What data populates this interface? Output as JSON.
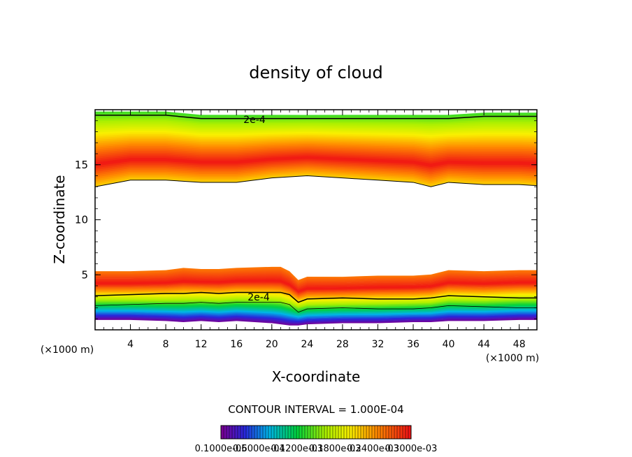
{
  "chart_data": {
    "type": "contour",
    "title": "density of cloud",
    "xlabel": "X-coordinate",
    "ylabel": "Z-coordinate",
    "x_unit": "(×1000 m)",
    "z_unit": "(×1000 m)",
    "xlim": [
      0,
      50
    ],
    "ylim": [
      0,
      20
    ],
    "x_ticks": [
      "4",
      "8",
      "12",
      "16",
      "20",
      "24",
      "28",
      "32",
      "36",
      "40",
      "44",
      "48"
    ],
    "y_ticks": [
      "5",
      "10",
      "15"
    ],
    "contour_labels": [
      "2e-4",
      "2e-4"
    ],
    "contour_interval": "CONTOUR INTERVAL = 1.000E-04",
    "colorbar_labels": [
      "0.1000e-05",
      "0.6000e-04",
      "0.1200e-03",
      "0.1800e-03",
      "0.2400e-03",
      "0.3000e-03"
    ],
    "upper_layer": {
      "x": [
        0,
        4,
        8,
        12,
        16,
        20,
        24,
        28,
        32,
        36,
        38,
        40,
        44,
        48,
        50
      ],
      "bottom": [
        13,
        13.6,
        13.6,
        13.4,
        13.4,
        13.8,
        14,
        13.8,
        13.6,
        13.4,
        13.0,
        13.4,
        13.2,
        13.2,
        13.1
      ],
      "top": [
        19.8,
        19.8,
        19.8,
        19.5,
        19.5,
        19.5,
        19.5,
        19.5,
        19.5,
        19.5,
        19.5,
        19.5,
        19.7,
        19.7,
        19.7
      ]
    },
    "lower_layer": {
      "x": [
        0,
        4,
        8,
        10,
        12,
        14,
        16,
        20,
        21,
        22,
        23,
        24,
        28,
        32,
        36,
        38,
        40,
        44,
        48,
        50
      ],
      "top": [
        5.3,
        5.3,
        5.4,
        5.6,
        5.5,
        5.5,
        5.6,
        5.7,
        5.7,
        5.3,
        4.5,
        4.8,
        4.8,
        4.9,
        4.9,
        5.0,
        5.4,
        5.3,
        5.4,
        5.4
      ],
      "bottom": [
        0.9,
        0.9,
        0.8,
        0.7,
        0.8,
        0.7,
        0.8,
        0.6,
        0.5,
        0.4,
        0.4,
        0.5,
        0.6,
        0.6,
        0.7,
        0.7,
        0.8,
        0.8,
        0.9,
        0.9
      ],
      "contour_2e4": [
        3.1,
        3.2,
        3.3,
        3.3,
        3.4,
        3.3,
        3.4,
        3.4,
        3.4,
        3.2,
        2.5,
        2.8,
        2.9,
        2.8,
        2.8,
        2.9,
        3.1,
        3.0,
        2.9,
        2.9
      ]
    }
  }
}
